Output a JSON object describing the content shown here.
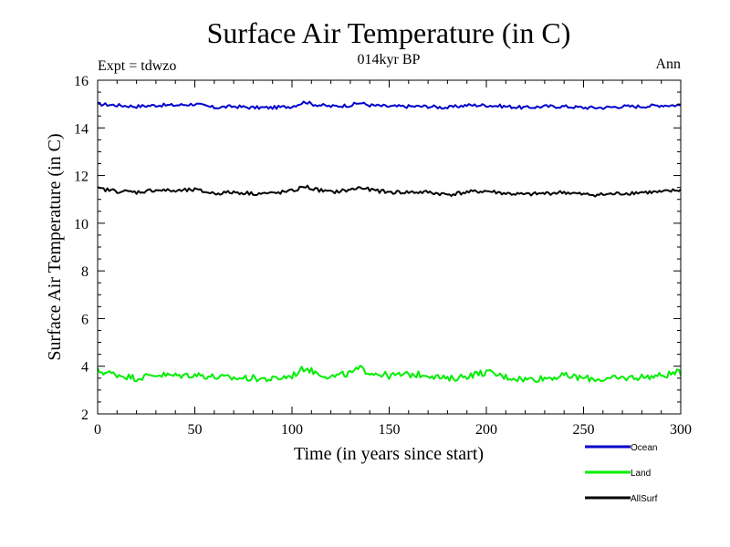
{
  "chart_data": {
    "type": "line",
    "title": "Surface Air Temperature (in C)",
    "subtitle": "014kyr BP",
    "left_note": "Expt = tdwzo",
    "right_note": "Ann",
    "xlabel": "Time (in years since start)",
    "ylabel": "Surface Air Temperature (in C)",
    "xlim": [
      0,
      300
    ],
    "ylim": [
      2,
      16
    ],
    "x_ticks": [
      "0",
      "50",
      "100",
      "150",
      "200",
      "250",
      "300"
    ],
    "y_ticks": [
      "2",
      "4",
      "6",
      "8",
      "10",
      "12",
      "14",
      "16"
    ],
    "grid": false,
    "legend_position": "bottom-right",
    "series": [
      {
        "name": "Ocean",
        "color": "#0000cc",
        "keypoints": [
          [
            0,
            15.0
          ],
          [
            10,
            14.95
          ],
          [
            20,
            14.9
          ],
          [
            30,
            14.95
          ],
          [
            40,
            14.95
          ],
          [
            50,
            15.0
          ],
          [
            60,
            14.85
          ],
          [
            70,
            14.9
          ],
          [
            80,
            14.85
          ],
          [
            90,
            14.85
          ],
          [
            100,
            14.9
          ],
          [
            107,
            15.1
          ],
          [
            110,
            15.0
          ],
          [
            120,
            14.9
          ],
          [
            130,
            14.95
          ],
          [
            135,
            15.05
          ],
          [
            140,
            14.95
          ],
          [
            150,
            14.9
          ],
          [
            160,
            14.9
          ],
          [
            170,
            14.9
          ],
          [
            180,
            14.85
          ],
          [
            190,
            14.95
          ],
          [
            200,
            14.95
          ],
          [
            210,
            14.9
          ],
          [
            220,
            14.85
          ],
          [
            230,
            14.9
          ],
          [
            240,
            14.9
          ],
          [
            250,
            14.85
          ],
          [
            260,
            14.85
          ],
          [
            270,
            14.9
          ],
          [
            280,
            14.9
          ],
          [
            290,
            14.95
          ],
          [
            300,
            14.95
          ]
        ]
      },
      {
        "name": "Land",
        "color": "#00ee00",
        "keypoints": [
          [
            0,
            3.8
          ],
          [
            10,
            3.65
          ],
          [
            20,
            3.5
          ],
          [
            30,
            3.65
          ],
          [
            40,
            3.6
          ],
          [
            50,
            3.65
          ],
          [
            60,
            3.55
          ],
          [
            70,
            3.5
          ],
          [
            80,
            3.5
          ],
          [
            90,
            3.45
          ],
          [
            100,
            3.6
          ],
          [
            107,
            3.95
          ],
          [
            110,
            3.8
          ],
          [
            120,
            3.55
          ],
          [
            130,
            3.7
          ],
          [
            135,
            3.9
          ],
          [
            140,
            3.75
          ],
          [
            150,
            3.6
          ],
          [
            160,
            3.65
          ],
          [
            170,
            3.65
          ],
          [
            180,
            3.45
          ],
          [
            190,
            3.6
          ],
          [
            200,
            3.75
          ],
          [
            210,
            3.55
          ],
          [
            220,
            3.45
          ],
          [
            230,
            3.5
          ],
          [
            240,
            3.6
          ],
          [
            250,
            3.5
          ],
          [
            260,
            3.45
          ],
          [
            270,
            3.5
          ],
          [
            280,
            3.55
          ],
          [
            290,
            3.6
          ],
          [
            300,
            3.75
          ]
        ]
      },
      {
        "name": "AllSurf",
        "color": "#000000",
        "keypoints": [
          [
            0,
            11.45
          ],
          [
            10,
            11.35
          ],
          [
            20,
            11.3
          ],
          [
            30,
            11.4
          ],
          [
            40,
            11.35
          ],
          [
            50,
            11.4
          ],
          [
            60,
            11.25
          ],
          [
            70,
            11.3
          ],
          [
            80,
            11.25
          ],
          [
            90,
            11.25
          ],
          [
            100,
            11.35
          ],
          [
            107,
            11.55
          ],
          [
            110,
            11.45
          ],
          [
            120,
            11.3
          ],
          [
            130,
            11.4
          ],
          [
            135,
            11.5
          ],
          [
            140,
            11.4
          ],
          [
            150,
            11.3
          ],
          [
            160,
            11.3
          ],
          [
            170,
            11.3
          ],
          [
            180,
            11.2
          ],
          [
            190,
            11.3
          ],
          [
            200,
            11.35
          ],
          [
            210,
            11.25
          ],
          [
            220,
            11.2
          ],
          [
            230,
            11.25
          ],
          [
            240,
            11.3
          ],
          [
            250,
            11.2
          ],
          [
            260,
            11.2
          ],
          [
            270,
            11.25
          ],
          [
            280,
            11.3
          ],
          [
            290,
            11.3
          ],
          [
            300,
            11.4
          ]
        ]
      }
    ]
  }
}
